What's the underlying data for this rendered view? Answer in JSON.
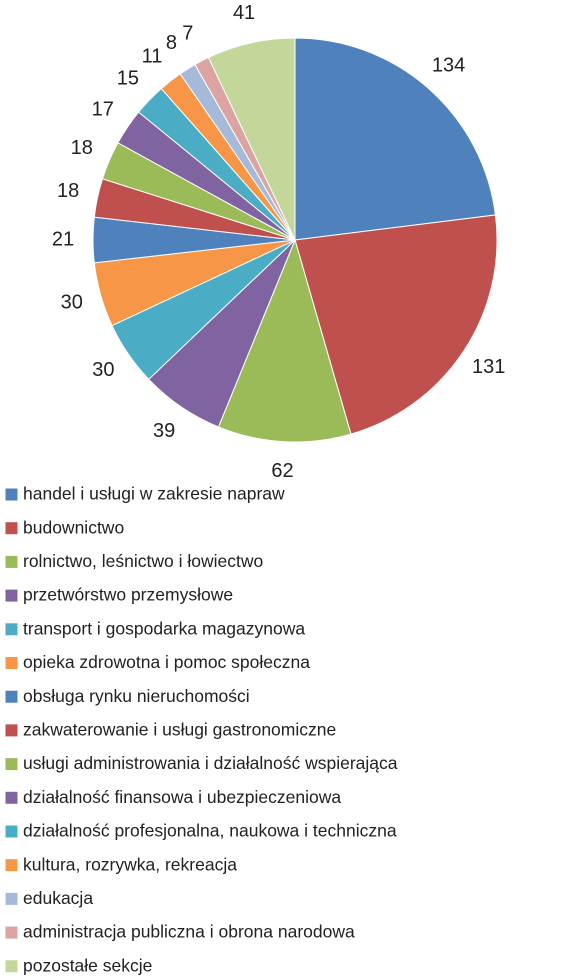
{
  "chart_data": {
    "type": "pie",
    "categories": [
      "handel i usługi w zakresie napraw",
      "budownictwo",
      "rolnictwo, leśnictwo i łowiectwo",
      "przetwórstwo przemysłowe",
      "transport i gospodarka magazynowa",
      "opieka zdrowotna i pomoc społeczna",
      "obsługa rynku nieruchomości",
      "zakwaterowanie i usługi gastronomiczne",
      "usługi administrowania i działalność wspierająca",
      "działalność finansowa i ubezpieczeniowa",
      "działalność profesjonalna, naukowa i techniczna",
      "kultura, rozrywka, rekreacja",
      "edukacja",
      "administracja publiczna i obrona narodowa",
      "pozostałe sekcje"
    ],
    "values": [
      134,
      131,
      62,
      39,
      30,
      30,
      21,
      18,
      18,
      17,
      15,
      11,
      8,
      7,
      41
    ],
    "colors": [
      "#4f81bd",
      "#c0504d",
      "#9bbb59",
      "#8064a2",
      "#4bacc6",
      "#f79646",
      "#4f81bd",
      "#c0504d",
      "#9bbb59",
      "#8064a2",
      "#4bacc6",
      "#f79646",
      "#a7b9d8",
      "#dba3a2",
      "#c4d79b"
    ],
    "legend": "bottom"
  }
}
